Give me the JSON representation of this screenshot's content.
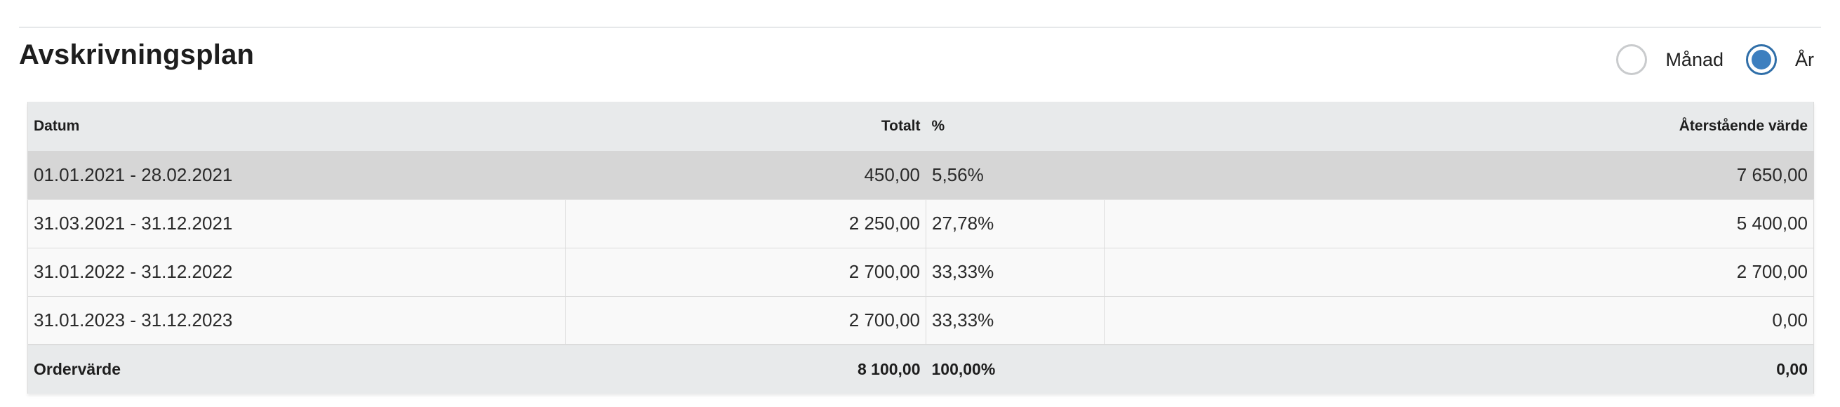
{
  "title": "Avskrivningsplan",
  "period_toggle": {
    "options": [
      {
        "label": "Månad",
        "selected": false
      },
      {
        "label": "År",
        "selected": true
      }
    ]
  },
  "table": {
    "headers": {
      "date": "Datum",
      "total": "Totalt",
      "percent": "%",
      "remaining": "Återstående värde"
    },
    "rows": [
      {
        "date": "01.01.2021 - 28.02.2021",
        "total": "450,00",
        "percent": "5,56%",
        "remaining": "7 650,00",
        "highlighted": true
      },
      {
        "date": "31.03.2021 - 31.12.2021",
        "total": "2 250,00",
        "percent": "27,78%",
        "remaining": "5 400,00",
        "highlighted": false
      },
      {
        "date": "31.01.2022 - 31.12.2022",
        "total": "2 700,00",
        "percent": "33,33%",
        "remaining": "2 700,00",
        "highlighted": false
      },
      {
        "date": "31.01.2023 - 31.12.2023",
        "total": "2 700,00",
        "percent": "33,33%",
        "remaining": "0,00",
        "highlighted": false
      }
    ],
    "footer": {
      "label": "Ordervärde",
      "total": "8 100,00",
      "percent": "100,00%",
      "remaining": "0,00"
    }
  },
  "colors": {
    "accent": "#3d7fbf",
    "header_bg": "#e8eaeb",
    "highlight_row": "#d6d6d6"
  }
}
